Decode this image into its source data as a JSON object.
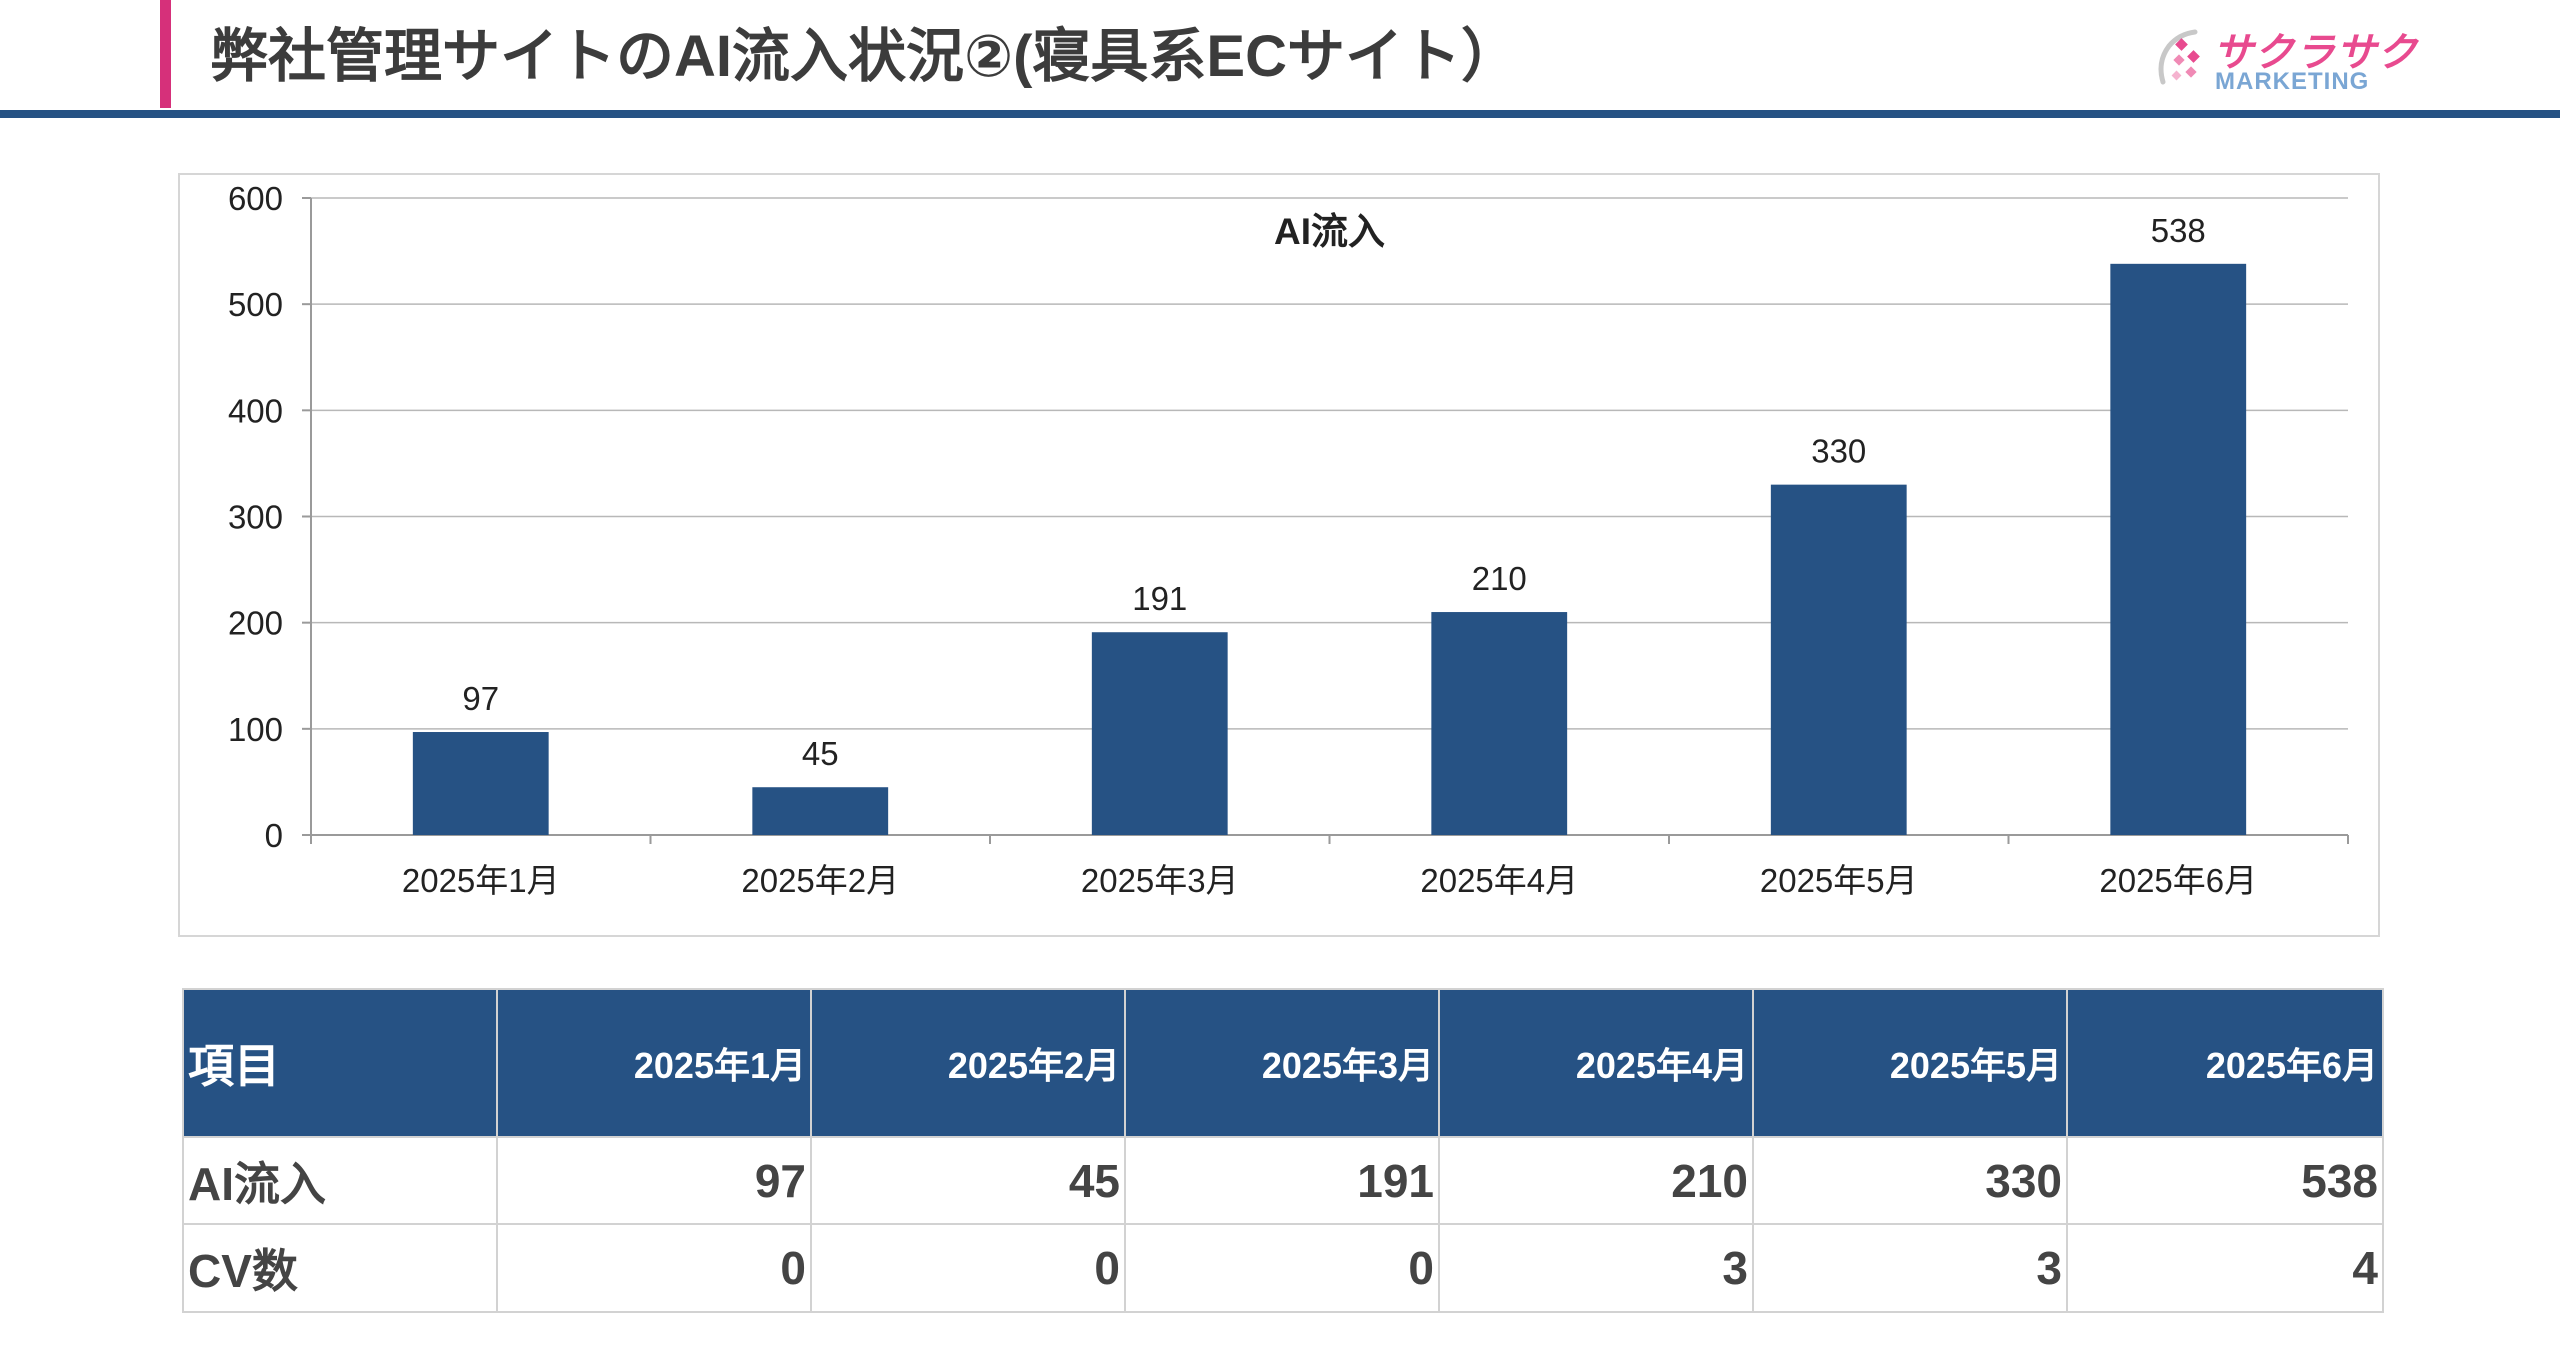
{
  "colors": {
    "accent": "#d6307a",
    "primary": "#265284",
    "logo_pink": "#e84a8f",
    "logo_blue": "#7aa6d4"
  },
  "header": {
    "title": "弊社管理サイトのAI流入状況②(寝具系ECサイト）"
  },
  "logo": {
    "jp_text": "サクラサク",
    "en_text": "MARKETING"
  },
  "chart_data": {
    "type": "bar",
    "title": "AI流入",
    "categories": [
      "2025年1月",
      "2025年2月",
      "2025年3月",
      "2025年4月",
      "2025年5月",
      "2025年6月"
    ],
    "values": [
      97,
      45,
      191,
      210,
      330,
      538
    ],
    "ylim": [
      0,
      600
    ],
    "yticks": [
      0,
      100,
      200,
      300,
      400,
      500,
      600
    ],
    "grid": true,
    "data_labels": true,
    "bar_color": "#265284"
  },
  "table": {
    "header": [
      "項目",
      "2025年1月",
      "2025年2月",
      "2025年3月",
      "2025年4月",
      "2025年5月",
      "2025年6月"
    ],
    "rows": [
      {
        "label": "AI流入",
        "values": [
          "97",
          "45",
          "191",
          "210",
          "330",
          "538"
        ]
      },
      {
        "label": "CV数",
        "values": [
          "0",
          "0",
          "0",
          "3",
          "3",
          "4"
        ]
      }
    ]
  }
}
